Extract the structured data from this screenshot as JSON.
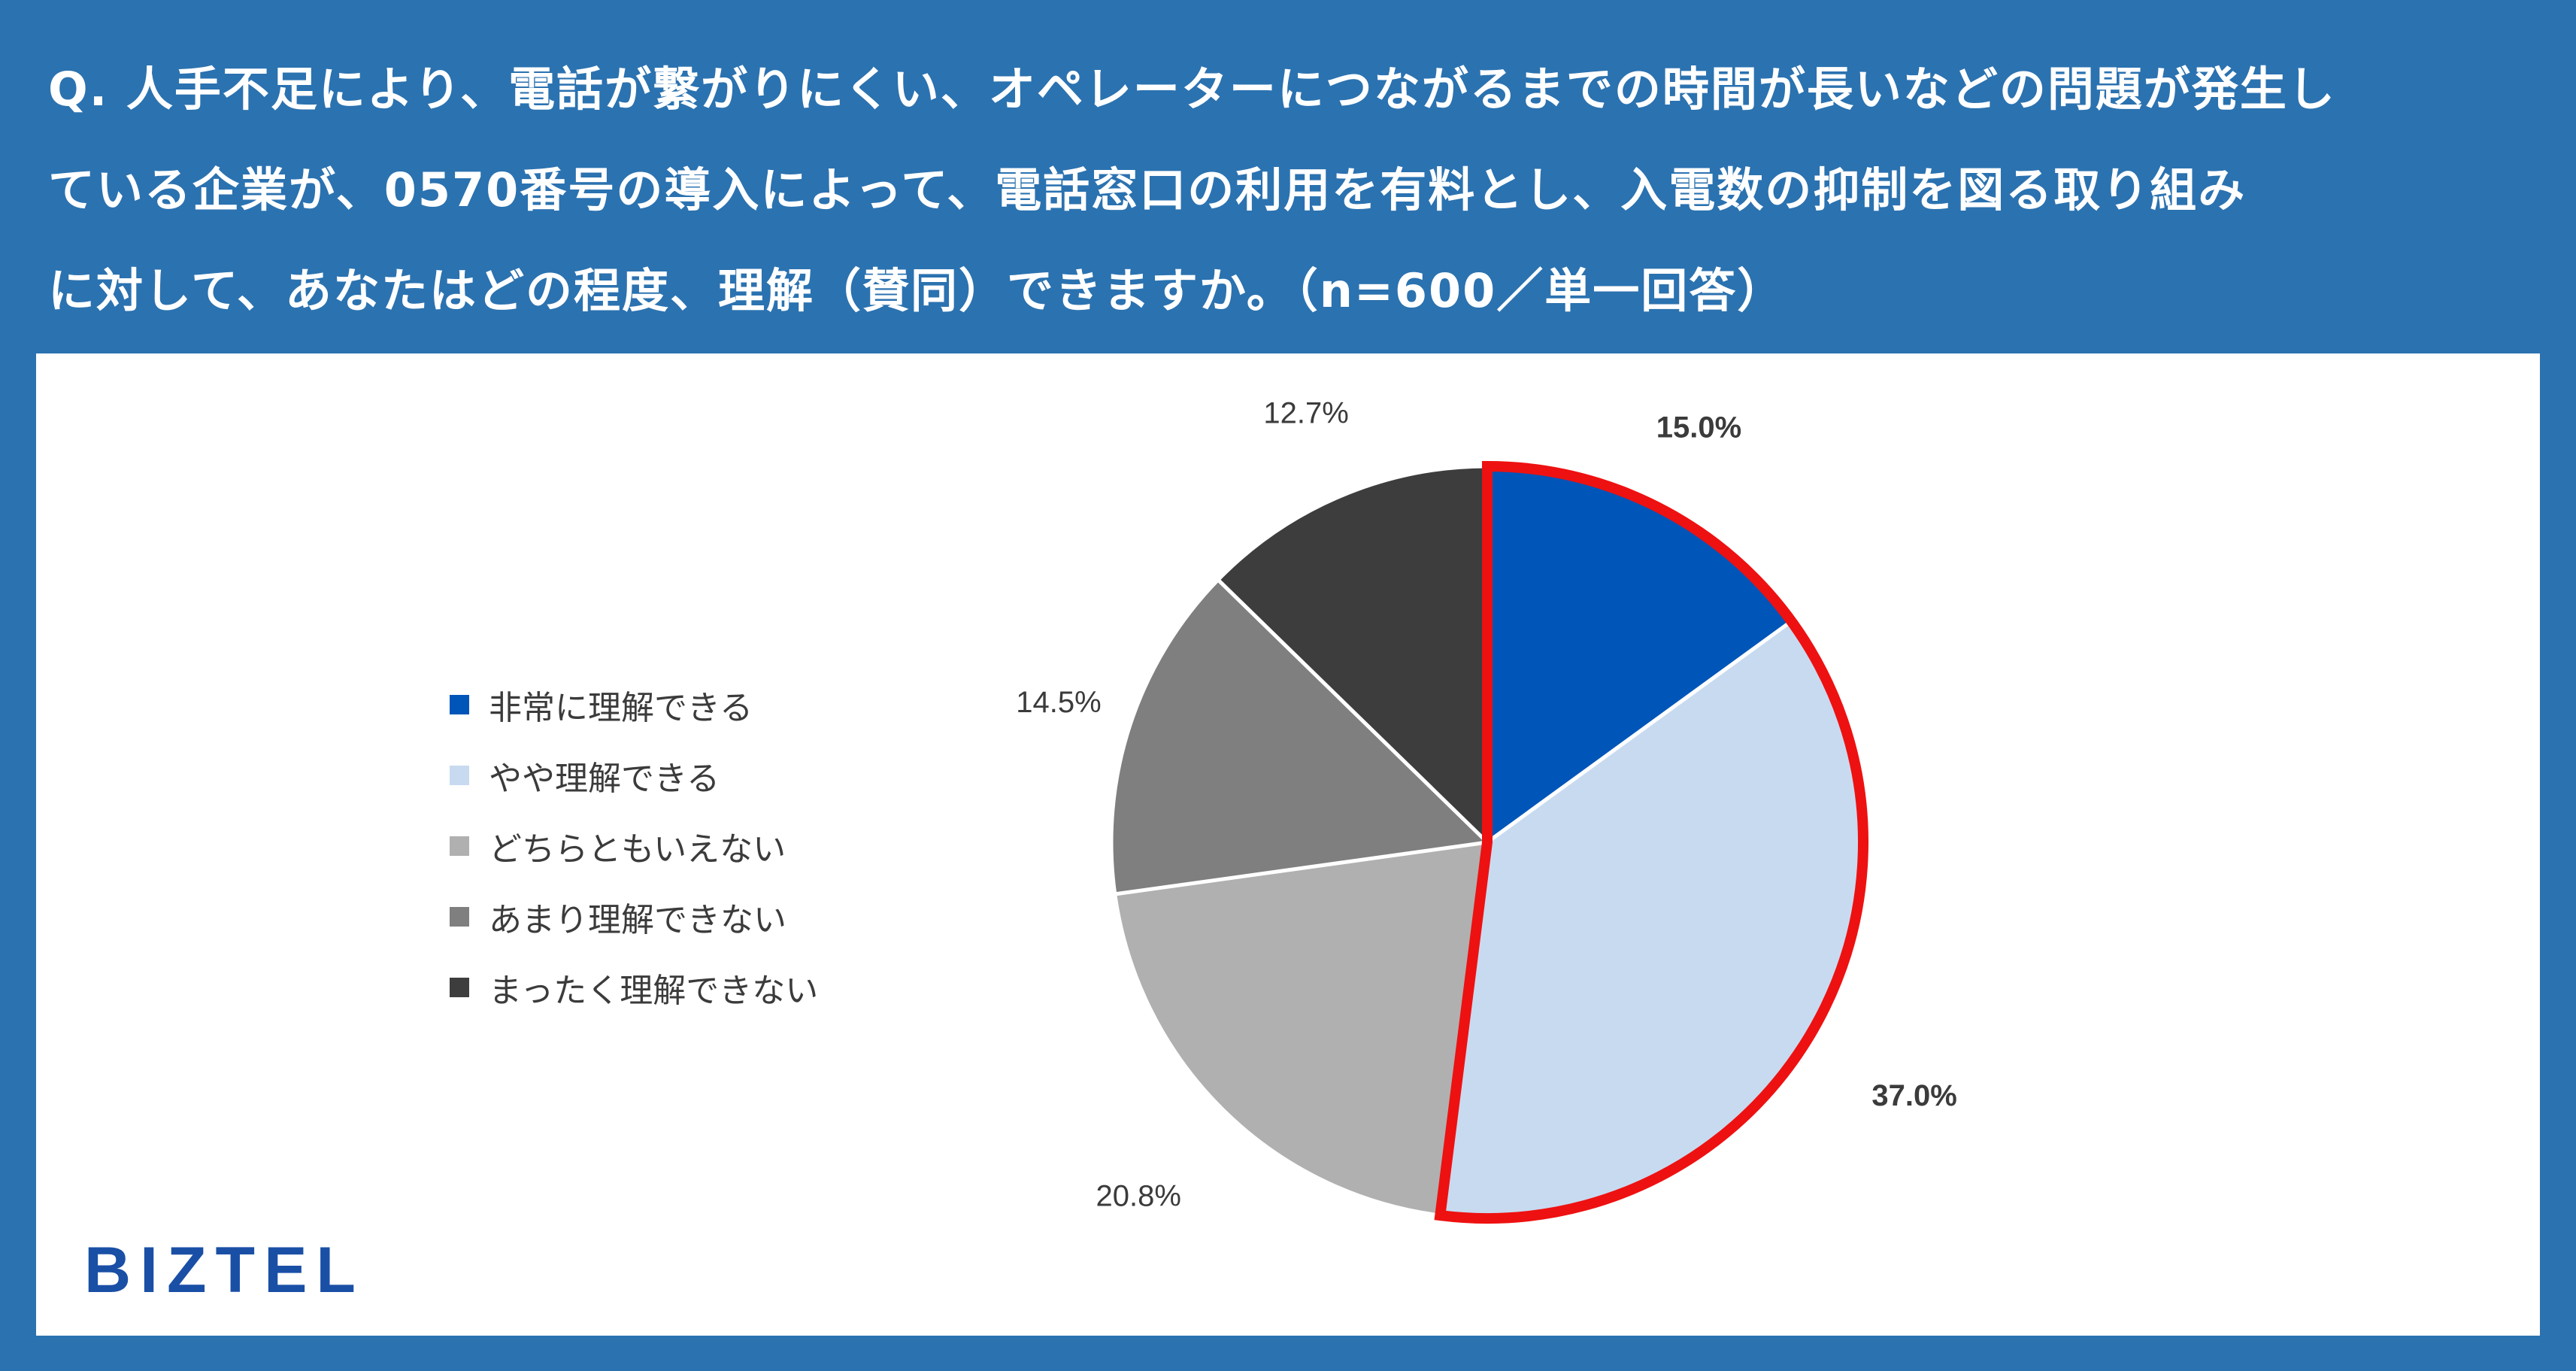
{
  "question": {
    "line1": "Q. 人手不足により、電話が繋がりにくい、オペレーターにつながるまでの時間が長いなどの問題が発生し",
    "line2": "ている企業が、0570番号の導入によって、電話窓口の利用を有料とし、入電数の抑制を図る取り組み",
    "line3": "に対して、あなたはどの程度、理解（賛同）できますか。（n=600／単一回答）"
  },
  "logo": "BIZTEL",
  "colors": {
    "background": "#2b72b0",
    "highlight_outline": "#ee1111"
  },
  "chart_data": {
    "type": "pie",
    "start_angle_deg": 0,
    "direction": "clockwise",
    "legend_placement": "left",
    "slices": [
      {
        "label": "非常に理解できる",
        "value": 15.0,
        "display": "15.0%",
        "color": "#0055b8",
        "highlight": true,
        "label_bold": true
      },
      {
        "label": "やや理解できる",
        "value": 37.0,
        "display": "37.0%",
        "color": "#c8daf0",
        "highlight": true,
        "label_bold": true
      },
      {
        "label": "どちらともいえない",
        "value": 20.8,
        "display": "20.8%",
        "color": "#b0b0b0",
        "highlight": false,
        "label_bold": false
      },
      {
        "label": "あまり理解できない",
        "value": 14.5,
        "display": "14.5%",
        "color": "#7f7f7f",
        "highlight": false,
        "label_bold": false
      },
      {
        "label": "まったく理解できない",
        "value": 12.7,
        "display": "12.7%",
        "color": "#3d3d3d",
        "highlight": false,
        "label_bold": false
      }
    ]
  }
}
